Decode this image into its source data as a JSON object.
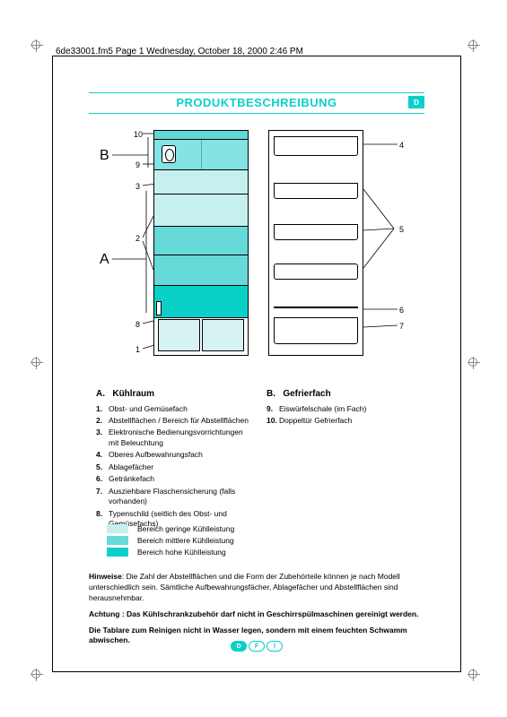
{
  "header": "6de33001.fm5  Page 1  Wednesday, October 18, 2000  2:46 PM",
  "title": "PRODUKTBESCHREIBUNG",
  "title_badge": "D",
  "section_labels": {
    "A": "A",
    "B": "B"
  },
  "callouts_left": [
    "1",
    "2",
    "3",
    "8",
    "9",
    "10"
  ],
  "callouts_right": [
    "4",
    "5",
    "6",
    "7"
  ],
  "cooling_zones": {
    "low": {
      "color": "#c6f0ef"
    },
    "mid": {
      "color": "#66d9d9"
    },
    "high": {
      "color": "#0ad1c8"
    }
  },
  "columns": {
    "A": {
      "heading_letter": "A.",
      "heading": "Kühlraum",
      "items": [
        {
          "n": "1.",
          "t": "Obst- und Gemüsefach"
        },
        {
          "n": "2.",
          "t": "Abstellflächen / Bereich für Abstellflächen"
        },
        {
          "n": "3.",
          "t": "Elektronische Bedienungsvorrichtungen mit Beleuchtung"
        },
        {
          "n": "4.",
          "t": "Oberes Aufbewahrungsfach"
        },
        {
          "n": "5.",
          "t": "Ablagefächer"
        },
        {
          "n": "6.",
          "t": "Getränkefach"
        },
        {
          "n": "7.",
          "t": "Ausziehbare Flaschensicherung (falls vorhanden)"
        },
        {
          "n": "8.",
          "t": "Typenschild (seitlich des Obst- und Gemüsefachs)"
        }
      ]
    },
    "B": {
      "heading_letter": "B.",
      "heading": "Gefrierfach",
      "items": [
        {
          "n": "9.",
          "t": "Eiswürfelschale (im Fach)"
        },
        {
          "n": "10.",
          "t": "Doppeltür Gefrierfach"
        }
      ]
    }
  },
  "color_key": [
    {
      "label": "Bereich geringe Kühlleistung",
      "color": "#c6f0ef"
    },
    {
      "label": "Bereich mittlere Kühlleistung",
      "color": "#66d9d9"
    },
    {
      "label": "Bereich hohe Kühlleistung",
      "color": "#0ad1c8"
    }
  ],
  "notes": {
    "hinweise_label": "Hinweise",
    "hinweise_text": ": Die Zahl der Abstellflächen und die Form der Zubehörteile können je nach Modell unterschiedlich sein. Sämtliche Aufbewahrungsfächer, Ablagefächer und Abstellflächen sind herausnehmbar.",
    "achtung": "Achtung : Das Kühlschrankzubehör darf nicht in Geschirrspülmaschinen gereinigt werden.",
    "tablare": "Die Tablare zum Reinigen nicht in Wasser legen, sondern mit einem feuchten Schwamm abwischen."
  },
  "footer_pills": [
    "D",
    "F",
    "I"
  ],
  "footer_active": 0,
  "colors": {
    "accent": "#0ad1c8",
    "text": "#000000"
  }
}
